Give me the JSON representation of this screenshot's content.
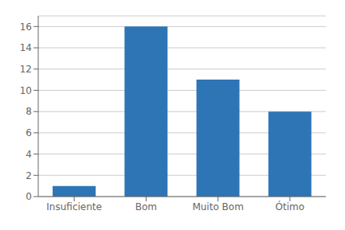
{
  "chart_data": {
    "type": "bar",
    "categories": [
      "Insuficiente",
      "Bom",
      "Muito Bom",
      "Ótimo"
    ],
    "values": [
      1,
      16,
      11,
      8
    ],
    "color": "#2E75B6",
    "ylim": [
      0,
      17
    ],
    "yticks": [
      0,
      2,
      4,
      6,
      8,
      10,
      12,
      14,
      16
    ],
    "grid": true
  }
}
